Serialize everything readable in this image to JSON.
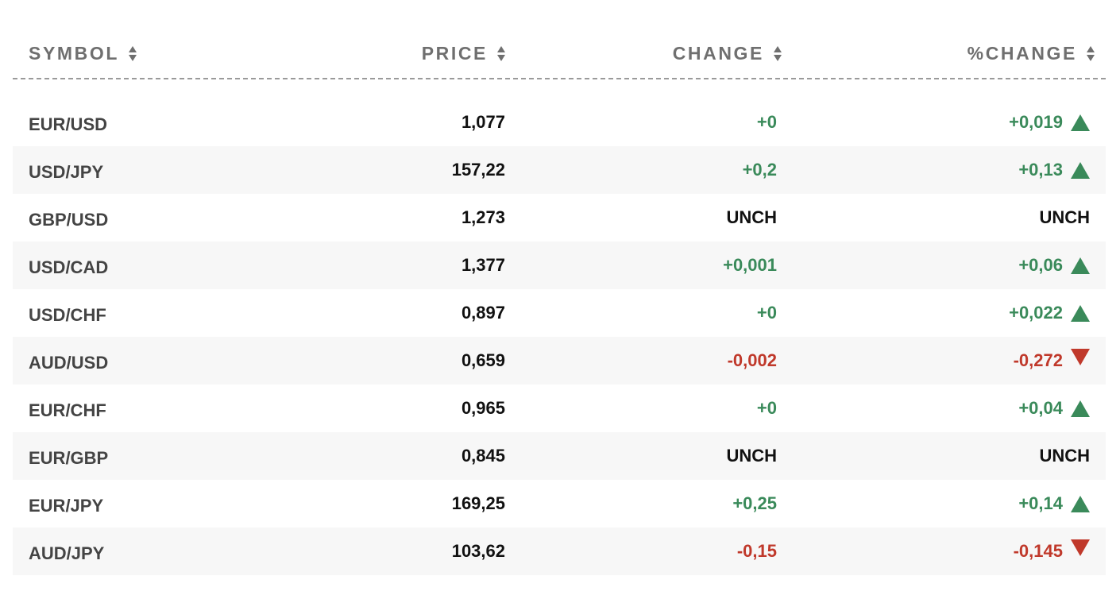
{
  "headers": {
    "symbol": "SYMBOL",
    "price": "PRICE",
    "change": "CHANGE",
    "pct_change": "%CHANGE"
  },
  "sort_icon": "sort-arrows-icon",
  "colors": {
    "positive": "#3a8a5a",
    "negative": "#c0392b",
    "neutral": "#111111",
    "header": "#6f6f6f",
    "row_stripe": "#f7f7f7"
  },
  "rows": [
    {
      "symbol": "EUR/USD",
      "price": "1,077",
      "change": "+0",
      "pct_change": "+0,019",
      "direction": "up"
    },
    {
      "symbol": "USD/JPY",
      "price": "157,22",
      "change": "+0,2",
      "pct_change": "+0,13",
      "direction": "up"
    },
    {
      "symbol": "GBP/USD",
      "price": "1,273",
      "change": "UNCH",
      "pct_change": "UNCH",
      "direction": "none"
    },
    {
      "symbol": "USD/CAD",
      "price": "1,377",
      "change": "+0,001",
      "pct_change": "+0,06",
      "direction": "up"
    },
    {
      "symbol": "USD/CHF",
      "price": "0,897",
      "change": "+0",
      "pct_change": "+0,022",
      "direction": "up"
    },
    {
      "symbol": "AUD/USD",
      "price": "0,659",
      "change": "-0,002",
      "pct_change": "-0,272",
      "direction": "down"
    },
    {
      "symbol": "EUR/CHF",
      "price": "0,965",
      "change": "+0",
      "pct_change": "+0,04",
      "direction": "up"
    },
    {
      "symbol": "EUR/GBP",
      "price": "0,845",
      "change": "UNCH",
      "pct_change": "UNCH",
      "direction": "none"
    },
    {
      "symbol": "EUR/JPY",
      "price": "169,25",
      "change": "+0,25",
      "pct_change": "+0,14",
      "direction": "up"
    },
    {
      "symbol": "AUD/JPY",
      "price": "103,62",
      "change": "-0,15",
      "pct_change": "-0,145",
      "direction": "down"
    }
  ]
}
